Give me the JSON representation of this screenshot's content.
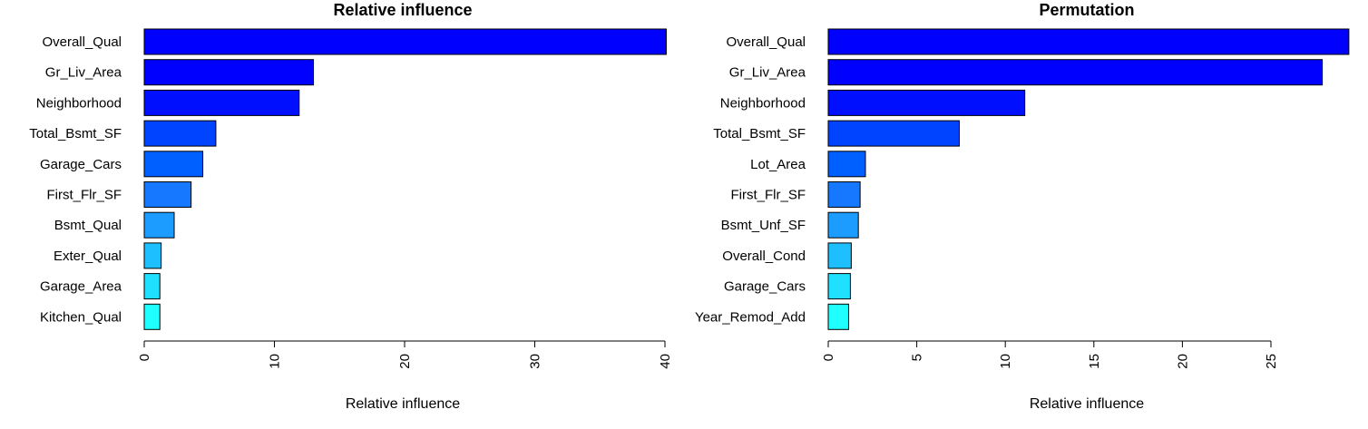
{
  "chart_data": [
    {
      "type": "bar",
      "orientation": "horizontal",
      "title": "Relative influence",
      "xlabel": "Relative influence",
      "ylabel": "",
      "xlim": [
        0,
        40
      ],
      "xticks": [
        "0",
        "10",
        "20",
        "30",
        "40"
      ],
      "grid": false,
      "categories": [
        "Overall_Qual",
        "Gr_Liv_Area",
        "Neighborhood",
        "Total_Bsmt_SF",
        "Garage_Cars",
        "First_Flr_SF",
        "Bsmt_Qual",
        "Exter_Qual",
        "Garage_Area",
        "Kitchen_Qual"
      ],
      "values": [
        40.1,
        13.0,
        11.9,
        5.5,
        4.5,
        3.6,
        2.3,
        1.3,
        1.2,
        1.2
      ],
      "colors": [
        "#0000ff",
        "#0000ff",
        "#0010ff",
        "#0044ff",
        "#0060ff",
        "#1578ff",
        "#1d9cff",
        "#1ebfff",
        "#20e0ff",
        "#20ffff"
      ]
    },
    {
      "type": "bar",
      "orientation": "horizontal",
      "title": "Permutation",
      "xlabel": "Relative influence",
      "ylabel": "",
      "xlim": [
        0,
        29.5
      ],
      "xticks": [
        "0",
        "5",
        "10",
        "15",
        "20",
        "25"
      ],
      "grid": false,
      "categories": [
        "Overall_Qual",
        "Gr_Liv_Area",
        "Neighborhood",
        "Total_Bsmt_SF",
        "Lot_Area",
        "First_Flr_SF",
        "Bsmt_Unf_SF",
        "Overall_Cond",
        "Garage_Cars",
        "Year_Remod_Add"
      ],
      "values": [
        29.4,
        27.9,
        11.1,
        7.4,
        2.1,
        1.8,
        1.7,
        1.3,
        1.25,
        1.15
      ],
      "colors": [
        "#0000ff",
        "#0000ff",
        "#0010ff",
        "#0044ff",
        "#0060ff",
        "#1578ff",
        "#1d9cff",
        "#1ebfff",
        "#20e0ff",
        "#20ffff"
      ]
    }
  ]
}
